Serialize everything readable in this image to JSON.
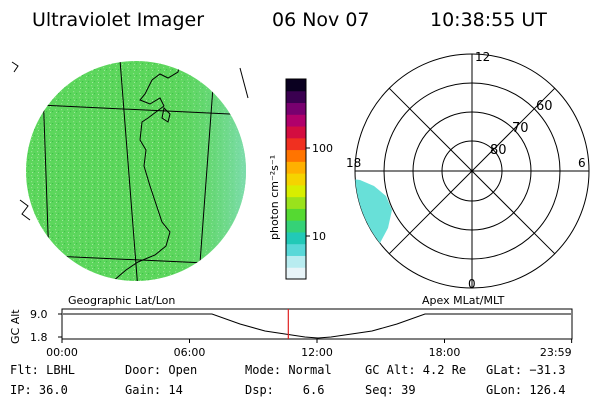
{
  "header": {
    "instrument": "Ultraviolet Imager",
    "date": "06 Nov 07",
    "time": "10:38:55 UT"
  },
  "colorbar": {
    "label": "photon cm⁻²s⁻¹",
    "tick_labels": [
      "100",
      "10"
    ],
    "tick_values": [
      100,
      10
    ],
    "colors": [
      "#e8f4f8",
      "#b8ecf0",
      "#59d8d8",
      "#22c9b7",
      "#35d277",
      "#55d932",
      "#9ae21c",
      "#d8ee00",
      "#f5d300",
      "#ffb000",
      "#ff7400",
      "#f03020",
      "#d30d40",
      "#b0006b",
      "#78006f",
      "#3a0050",
      "#0a0020"
    ]
  },
  "geo_panel": {
    "label": "Geographic Lat/Lon",
    "fill_color": "#5cd65c",
    "edge_color": "#8fe0d8"
  },
  "polar_panel": {
    "label": "Apex MLat/MLT",
    "mlt_labels": {
      "top": "12",
      "left": "18",
      "right": "6",
      "bottom": "0"
    },
    "mlat_labels": [
      "60",
      "70",
      "80"
    ],
    "aurora_color": "#68e0d8"
  },
  "timeline": {
    "axis_label": "GC Alt",
    "y_ticks": [
      "9.0",
      "1.8"
    ],
    "x_ticks": [
      "00:00",
      "06:00",
      "12:00",
      "18:00",
      "23:59"
    ],
    "current_time_marker_hours": 10.65,
    "marker_color": "#e02020"
  },
  "info": {
    "row1": [
      "Flt: LBHL",
      "Door: Open",
      "Mode: Normal",
      "GC Alt: 4.2 Re",
      "GLat: −31.3"
    ],
    "row2": [
      "IP: 36.0",
      "Gain: 14",
      "Dsp:    6.6",
      "Seq: 39",
      "GLon: 126.4"
    ]
  }
}
